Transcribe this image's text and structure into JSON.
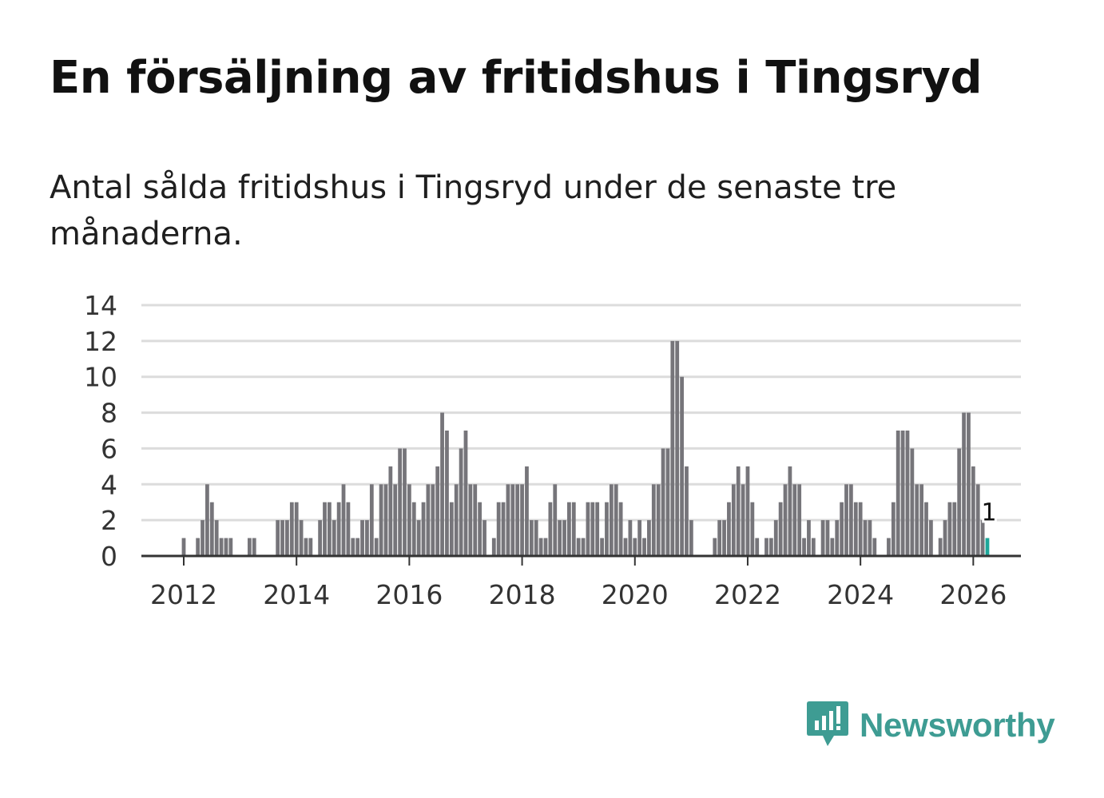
{
  "header": {
    "title": "En försäljning av fritidshus i Tingsryd",
    "subtitle": "Antal sålda fritidshus i Tingsryd under de senaste tre månaderna."
  },
  "brand": {
    "name": "Newsworthy",
    "color": "#3e9c93",
    "icon": "newsworthy-logo-icon"
  },
  "chart_data": {
    "type": "bar",
    "x_start": "2012-01",
    "x_end": "2026-02",
    "x_ticks": [
      "2012",
      "2014",
      "2016",
      "2018",
      "2020",
      "2022",
      "2024",
      "2026"
    ],
    "y_ticks": [
      0,
      2,
      4,
      6,
      8,
      10,
      12,
      14
    ],
    "ylim": [
      0,
      14
    ],
    "grid": true,
    "bar_color": "#76757a",
    "highlight_color": "#1ea79a",
    "highlight_label": "1",
    "values": [
      1,
      0,
      0,
      1,
      2,
      4,
      3,
      2,
      1,
      1,
      1,
      0,
      0,
      0,
      1,
      1,
      0,
      0,
      0,
      0,
      2,
      2,
      2,
      3,
      3,
      2,
      1,
      1,
      0,
      2,
      3,
      3,
      2,
      3,
      4,
      3,
      1,
      1,
      2,
      2,
      4,
      1,
      4,
      4,
      5,
      4,
      6,
      6,
      4,
      3,
      2,
      3,
      4,
      4,
      5,
      8,
      7,
      3,
      4,
      6,
      7,
      4,
      4,
      3,
      2,
      0,
      1,
      3,
      3,
      4,
      4,
      4,
      4,
      5,
      2,
      2,
      1,
      1,
      3,
      4,
      2,
      2,
      3,
      3,
      1,
      1,
      3,
      3,
      3,
      1,
      3,
      4,
      4,
      3,
      1,
      2,
      1,
      2,
      1,
      2,
      4,
      4,
      6,
      6,
      12,
      12,
      10,
      5,
      2,
      0,
      0,
      0,
      0,
      1,
      2,
      2,
      3,
      4,
      5,
      4,
      5,
      3,
      1,
      0,
      1,
      1,
      2,
      3,
      4,
      5,
      4,
      4,
      1,
      2,
      1,
      0,
      2,
      2,
      1,
      2,
      3,
      4,
      4,
      3,
      3,
      2,
      2,
      1,
      0,
      0,
      1,
      3,
      7,
      7,
      7,
      6,
      4,
      4,
      3,
      2,
      0,
      1,
      2,
      3,
      3,
      6,
      8,
      8,
      5,
      4,
      2,
      1
    ]
  }
}
